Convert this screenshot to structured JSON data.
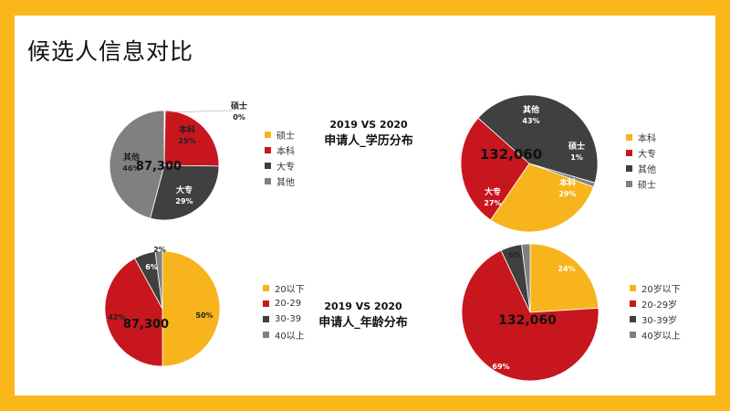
{
  "page": {
    "title": "候选人信息对比"
  },
  "colors": {
    "frame": "#FBB71A",
    "yellow": "#F7B41C",
    "red": "#C8161E",
    "dark": "#404040",
    "gray": "#808080"
  },
  "captions": {
    "education": {
      "years": "2019  VS 2020",
      "name": "申请人_学历分布"
    },
    "age": {
      "years": "2019  VS 2020",
      "name": "申请人_年龄分布"
    }
  },
  "legends": {
    "edu_2019": [
      "硕士",
      "本科",
      "大专",
      "其他"
    ],
    "edu_2020": [
      "本科",
      "大专",
      "其他",
      "硕士"
    ],
    "age_2019": [
      "20以下",
      "20-29",
      "30-39",
      "40以上"
    ],
    "age_2020": [
      "20岁以下",
      "20-29岁",
      "30-39岁",
      "40岁以上"
    ]
  },
  "chart_data": [
    {
      "id": "edu_2019",
      "type": "pie",
      "total_label": "87,300",
      "slices": [
        {
          "name": "硕士",
          "label": "硕士",
          "value_label": "0%",
          "value": 0.3,
          "color": "#F7B41C"
        },
        {
          "name": "本科",
          "label": "本科",
          "value_label": "25%",
          "value": 25,
          "color": "#C8161E"
        },
        {
          "name": "大专",
          "label": "大专",
          "value_label": "29%",
          "value": 29,
          "color": "#404040"
        },
        {
          "name": "其他",
          "label": "其他",
          "value_label": "46%",
          "value": 46,
          "color": "#808080"
        }
      ]
    },
    {
      "id": "edu_2020",
      "type": "pie",
      "total_label": "132,060",
      "slices": [
        {
          "name": "本科",
          "label": "本科",
          "value_label": "29%",
          "value": 29,
          "color": "#F7B41C"
        },
        {
          "name": "大专",
          "label": "大专",
          "value_label": "27%",
          "value": 27,
          "color": "#C8161E"
        },
        {
          "name": "其他",
          "label": "其他",
          "value_label": "43%",
          "value": 43,
          "color": "#404040"
        },
        {
          "name": "硕士",
          "label": "硕士",
          "value_label": "1%",
          "value": 1,
          "color": "#808080"
        }
      ]
    },
    {
      "id": "age_2019",
      "type": "pie",
      "total_label": "87,300",
      "slices": [
        {
          "name": "20以下",
          "label": "",
          "value_label": "50%",
          "value": 50,
          "color": "#F7B41C"
        },
        {
          "name": "20-29",
          "label": "",
          "value_label": "42%",
          "value": 42,
          "color": "#C8161E"
        },
        {
          "name": "30-39",
          "label": "",
          "value_label": "6%",
          "value": 6,
          "color": "#404040"
        },
        {
          "name": "40以上",
          "label": "",
          "value_label": "2%",
          "value": 2,
          "color": "#808080"
        }
      ]
    },
    {
      "id": "age_2020",
      "type": "pie",
      "total_label": "132,060",
      "slices": [
        {
          "name": "20岁以下",
          "label": "",
          "value_label": "24%",
          "value": 24,
          "color": "#F7B41C"
        },
        {
          "name": "20-29岁",
          "label": "",
          "value_label": "69%",
          "value": 69,
          "color": "#C8161E"
        },
        {
          "name": "30-39岁",
          "label": "",
          "value_label": "5%",
          "value": 5,
          "color": "#404040"
        },
        {
          "name": "40岁以上",
          "label": "",
          "value_label": "",
          "value": 2,
          "color": "#808080"
        }
      ]
    }
  ]
}
